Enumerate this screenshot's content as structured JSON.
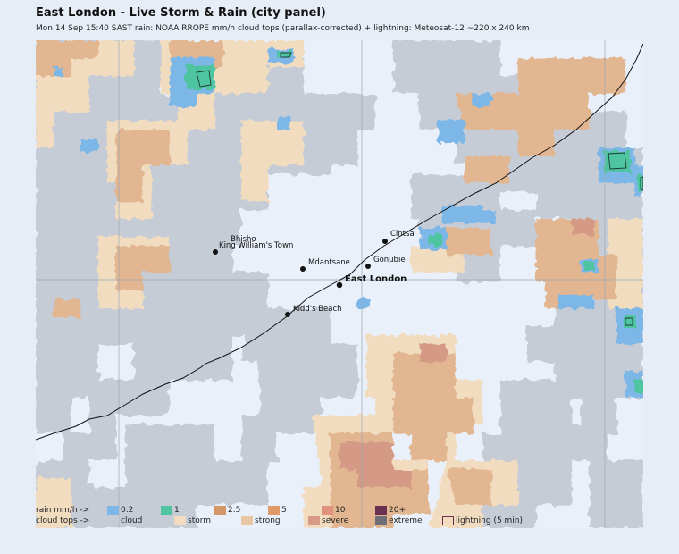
{
  "header": {
    "title": "East London - Live Storm & Rain (city panel)",
    "subtitle": "Mon 14 Sep 15:40 SAST   rain: NOAA RRQPE mm/h   cloud tops (parallax-corrected) + lightning: Meteosat-12   ~220 x 240 km"
  },
  "places": [
    {
      "name": "Bhisho",
      "main": false
    },
    {
      "name": "King William's Town",
      "main": false
    },
    {
      "name": "Mdantsane",
      "main": false
    },
    {
      "name": "Cintsa",
      "main": false
    },
    {
      "name": "Gonubie",
      "main": false
    },
    {
      "name": "East London",
      "main": true
    },
    {
      "name": "Kidd's Beach",
      "main": false
    }
  ],
  "legend": {
    "rain_label": "rain mm/h ->",
    "rain_items": [
      {
        "label": "0.2",
        "color": "#7db7e8"
      },
      {
        "label": "1",
        "color": "#4fc4a0"
      },
      {
        "label": "2.5",
        "color": "#d59667"
      },
      {
        "label": "5",
        "color": "#e09a6a"
      },
      {
        "label": "10",
        "color": "#e0927c"
      },
      {
        "label": "20+",
        "color": "#6b3050"
      }
    ],
    "cloud_label": "cloud tops ->",
    "cloud_items": [
      {
        "label": "cloud",
        "color": "#c6ccd6"
      },
      {
        "label": "storm",
        "color": "#f2dcc0"
      },
      {
        "label": "strong",
        "color": "#e8c6a4"
      },
      {
        "label": "severe",
        "color": "#d89a86"
      },
      {
        "label": "extreme",
        "color": "#6f6f78"
      }
    ],
    "lightning_label": "lightning (5 min)"
  },
  "colors": {
    "background": "#e9f0f9",
    "cloud": "#c6ccd6",
    "storm": "#f2dcc0",
    "strong": "#e2b690",
    "severe": "#d49a86",
    "rain_light": "#7db7e8",
    "rain_moderate": "#4fc4a0",
    "coastline": "#111111"
  }
}
